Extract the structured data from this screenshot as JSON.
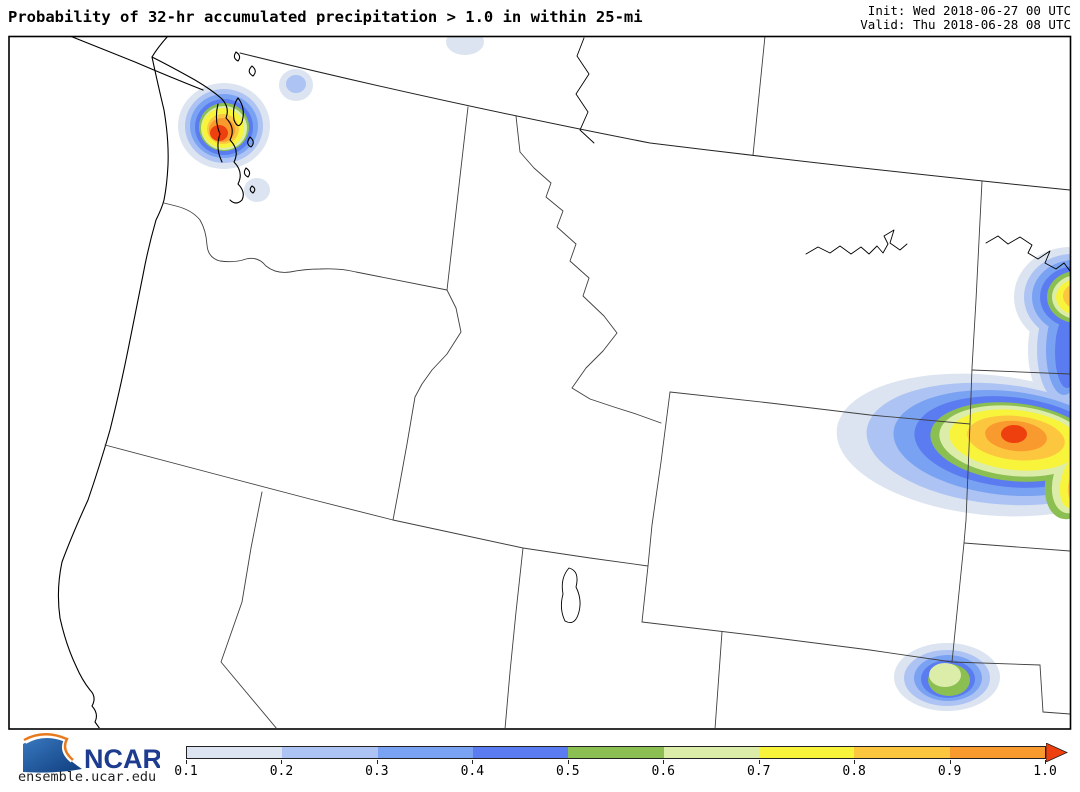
{
  "header": {
    "title": "Probability of 32-hr accumulated precipitation > 1.0 in within 25-mi",
    "init_line": "Init: Wed 2018-06-27 00 UTC",
    "valid_line": "Valid: Thu 2018-06-28 08 UTC"
  },
  "map": {
    "region": "Pacific Northwest and Northern Rockies, United States",
    "states_visible": [
      "Washington",
      "Oregon",
      "California",
      "Nevada",
      "Idaho",
      "Montana",
      "Wyoming",
      "Utah",
      "Colorado",
      "Nebraska",
      "North Dakota",
      "South Dakota"
    ],
    "probability_maxima": [
      {
        "area": "Puget Sound / Seattle WA",
        "peak": 1.0
      },
      {
        "area": "NW Washington (small spot)",
        "peak": 0.3
      },
      {
        "area": "North-central WA border spot",
        "peak": 0.1
      },
      {
        "area": "South Puget Sound spot",
        "peak": 0.1
      },
      {
        "area": "NE Montana / ND border (right edge)",
        "peak": 1.0
      },
      {
        "area": "NE Wyoming - Black Hills area",
        "peak": 1.0
      },
      {
        "area": "Northern Colorado",
        "peak": 0.7
      }
    ]
  },
  "colorbar": {
    "tick_labels": [
      "0.1",
      "0.2",
      "0.3",
      "0.4",
      "0.5",
      "0.6",
      "0.7",
      "0.8",
      "0.9",
      "1.0"
    ],
    "colors": [
      "#dbe4f0",
      "#adc3f3",
      "#7aa2f2",
      "#5a7cf0",
      "#8cbf52",
      "#dcedaa",
      "#f8f43c",
      "#fcc63f",
      "#f99a2e",
      "#ee3f0e"
    ],
    "levels": [
      0.1,
      0.2,
      0.3,
      0.4,
      0.5,
      0.6,
      0.7,
      0.8,
      0.9,
      1.0
    ]
  },
  "footer": {
    "logo_text": "NCAR",
    "site_text": "ensemble.ucar.edu"
  }
}
